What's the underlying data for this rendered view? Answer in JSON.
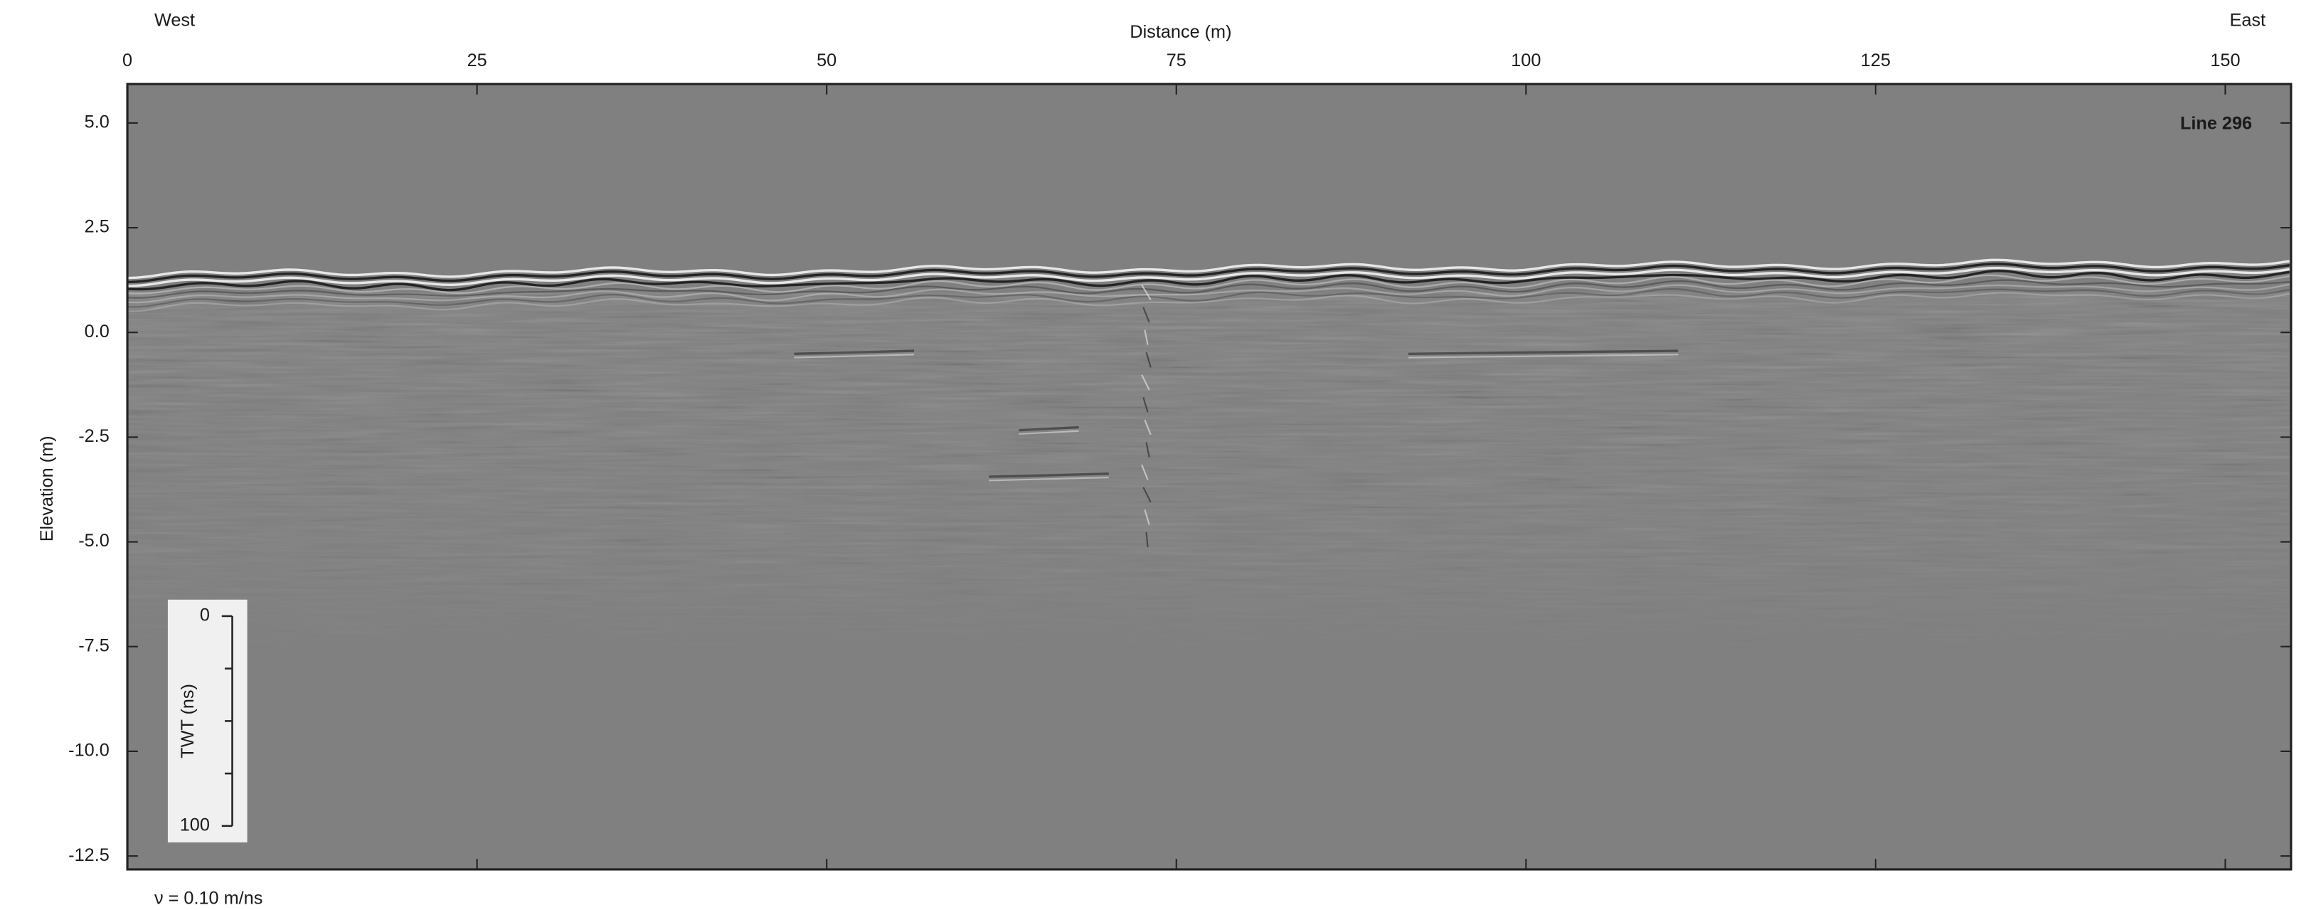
{
  "chart_data": {
    "type": "radargram",
    "title": "Line 296",
    "x_label": "Distance (m)",
    "y_label": "Elevation (m)",
    "x_left_label": "West",
    "x_right_label": "East",
    "xlim": [
      0,
      154.7
    ],
    "xticks": [
      0,
      25,
      50,
      75,
      100,
      125,
      150
    ],
    "ylim": [
      -12.82,
      5.93
    ],
    "yticks": [
      {
        "value": 5,
        "label": "5.0"
      },
      2.5,
      {
        "value": 0,
        "label": "0.0"
      },
      -2.5,
      {
        "value": -5,
        "label": "-5.0"
      },
      -7.5,
      {
        "value": -10,
        "label": "-10.0"
      },
      -12.5
    ],
    "twt_scale": {
      "label": "TWT (ns)",
      "lim": [
        0,
        100
      ],
      "ticks": [
        0,
        100
      ],
      "minor_ticks": [
        25,
        50,
        75
      ]
    },
    "velocity_note": "ν = 0.10 m/ns"
  }
}
